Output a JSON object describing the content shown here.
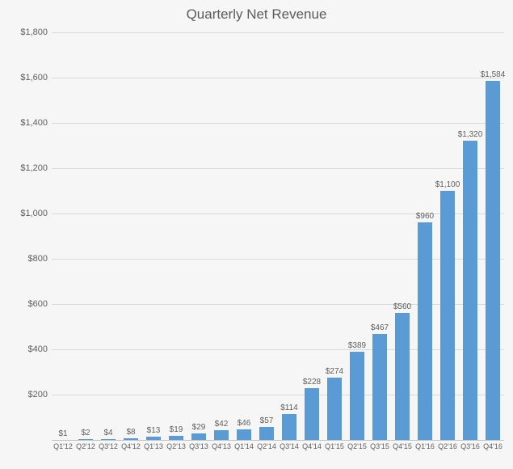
{
  "chart": {
    "type": "bar",
    "title": "Quarterly Net Revenue",
    "title_fontsize": 17,
    "title_color": "#5b5b5b",
    "background_color": "#f6f6f6",
    "bar_color": "#5b9bd5",
    "grid_color": "#d9d9d9",
    "axis_line_color": "#bfbfbf",
    "text_color": "#606060",
    "label_fontsize": 10,
    "xlabel_fontsize": 9,
    "ylabel_fontsize": 11,
    "value_prefix": "$",
    "thousands_separator": ",",
    "ylim": [
      0,
      1800
    ],
    "ytick_step": 200,
    "yticks": [
      0,
      200,
      400,
      600,
      800,
      1000,
      1200,
      1400,
      1600,
      1800
    ],
    "ytick_labels": [
      "",
      "$200",
      "$400",
      "$600",
      "$800",
      "$1,000",
      "$1,200",
      "$1,400",
      "$1,600",
      "$1,800"
    ],
    "bar_width_ratio": 0.62,
    "categories": [
      "Q1'12",
      "Q2'12",
      "Q3'12",
      "Q4'12",
      "Q1'13",
      "Q2'13",
      "Q3'13",
      "Q4'13",
      "Q1'14",
      "Q2'14",
      "Q3'14",
      "Q4'14",
      "Q1'15",
      "Q2'15",
      "Q3'15",
      "Q4'15",
      "Q1'16",
      "Q2'16",
      "Q3'16",
      "Q4'16"
    ],
    "values": [
      1,
      2,
      4,
      8,
      13,
      19,
      29,
      42,
      46,
      57,
      114,
      228,
      274,
      389,
      467,
      560,
      960,
      1100,
      1320,
      1584
    ],
    "value_labels": [
      "$1",
      "$2",
      "$4",
      "$8",
      "$13",
      "$19",
      "$29",
      "$42",
      "$46",
      "$57",
      "$114",
      "$228",
      "$274",
      "$389",
      "$467",
      "$560",
      "$960",
      "$1,100",
      "$1,320",
      "$1,584"
    ]
  }
}
